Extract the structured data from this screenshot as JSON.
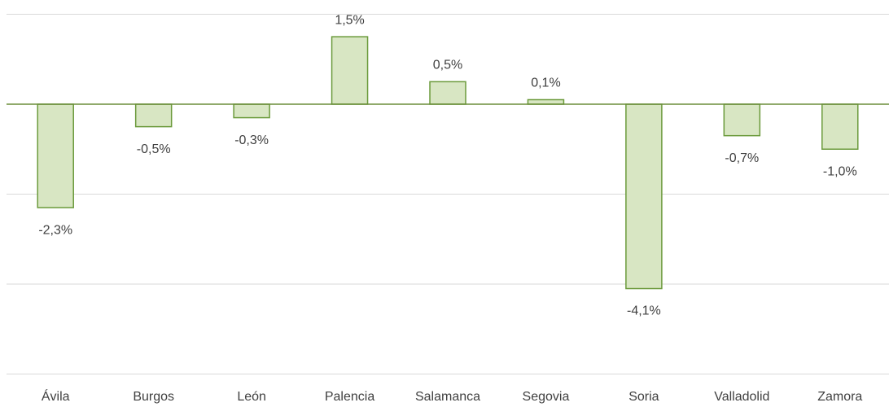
{
  "chart_data": {
    "type": "bar",
    "categories": [
      "Ávila",
      "Burgos",
      "León",
      "Palencia",
      "Salamanca",
      "Segovia",
      "Soria",
      "Valladolid",
      "Zamora"
    ],
    "values": [
      -2.3,
      -0.5,
      -0.3,
      1.5,
      0.5,
      0.1,
      -4.1,
      -0.7,
      -1.0
    ],
    "value_labels": [
      "-2,3%",
      "-0,5%",
      "-0,3%",
      "1,5%",
      "0,5%",
      "0,1%",
      "-4,1%",
      "-0,7%",
      "-1,0%"
    ],
    "color": "#d8e6c3",
    "edge_color": "#6b9a3b",
    "ylim": [
      -6,
      2
    ],
    "yticks": [
      -6,
      -4,
      -2,
      0,
      2
    ],
    "grid": true
  }
}
